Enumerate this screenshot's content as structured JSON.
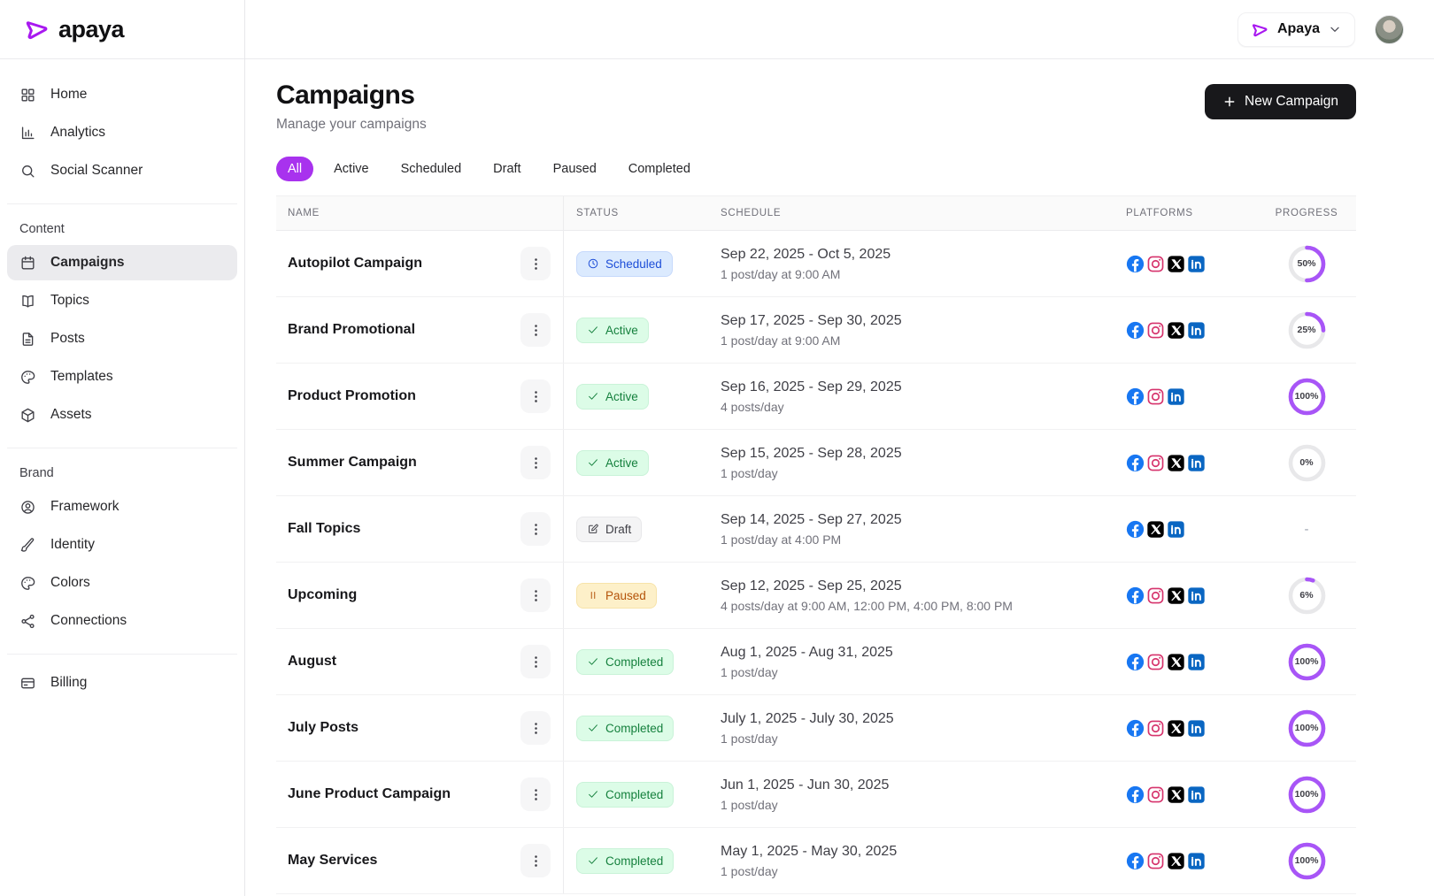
{
  "colors": {
    "accent_purple": "#a832ee",
    "ring_purple": "#a855f7",
    "ring_track": "#e8e8ea",
    "facebook_blue": "#1877f2",
    "instagram_pink": "#d6336c",
    "x_black": "#000000",
    "linkedin_blue": "#0a66c2",
    "button_black": "#18181b",
    "scheduled_blue": "#1d4ed8",
    "active_green": "#15803d",
    "paused_amber": "#b45309"
  },
  "brand": {
    "logo_text": "apaya",
    "logo_icon": "arrow-play"
  },
  "topbar": {
    "workspace_name": "Apaya",
    "chevron_icon": "chevron-down",
    "avatar": "user-photo"
  },
  "sidebar": {
    "sections": [
      {
        "label": null,
        "items": [
          {
            "icon": "grid",
            "label": "Home",
            "active": false
          },
          {
            "icon": "chart",
            "label": "Analytics",
            "active": false
          },
          {
            "icon": "search",
            "label": "Social Scanner",
            "active": false
          }
        ]
      },
      {
        "label": "Content",
        "items": [
          {
            "icon": "calendar",
            "label": "Campaigns",
            "active": true
          },
          {
            "icon": "book",
            "label": "Topics",
            "active": false
          },
          {
            "icon": "file",
            "label": "Posts",
            "active": false
          },
          {
            "icon": "palette",
            "label": "Templates",
            "active": false
          },
          {
            "icon": "cube",
            "label": "Assets",
            "active": false
          }
        ]
      },
      {
        "label": "Brand",
        "items": [
          {
            "icon": "user-circle",
            "label": "Framework",
            "active": false
          },
          {
            "icon": "brush",
            "label": "Identity",
            "active": false
          },
          {
            "icon": "palette",
            "label": "Colors",
            "active": false
          },
          {
            "icon": "share",
            "label": "Connections",
            "active": false
          }
        ]
      },
      {
        "label": null,
        "items": [
          {
            "icon": "card",
            "label": "Billing",
            "active": false
          }
        ]
      }
    ]
  },
  "page": {
    "title": "Campaigns",
    "subtitle": "Manage your campaigns",
    "new_campaign_label": "New Campaign"
  },
  "filters": {
    "selected": "All",
    "options": [
      "All",
      "Active",
      "Scheduled",
      "Draft",
      "Paused",
      "Completed"
    ]
  },
  "table": {
    "columns": [
      "NAME",
      "STATUS",
      "SCHEDULE",
      "PLATFORMS",
      "PROGRESS"
    ],
    "rows": [
      {
        "name": "Autopilot Campaign",
        "status": "Scheduled",
        "date_range": "Sep 22, 2025 - Oct 5, 2025",
        "frequency": "1 post/day at 9:00 AM",
        "platforms": [
          "facebook",
          "instagram",
          "x",
          "linkedin"
        ],
        "progress": 50
      },
      {
        "name": "Brand Promotional",
        "status": "Active",
        "date_range": "Sep 17, 2025 - Sep 30, 2025",
        "frequency": "1 post/day at 9:00 AM",
        "platforms": [
          "facebook",
          "instagram",
          "x",
          "linkedin"
        ],
        "progress": 25
      },
      {
        "name": "Product Promotion",
        "status": "Active",
        "date_range": "Sep 16, 2025 - Sep 29, 2025",
        "frequency": "4 posts/day",
        "platforms": [
          "facebook",
          "instagram",
          "linkedin"
        ],
        "progress": 100
      },
      {
        "name": "Summer Campaign",
        "status": "Active",
        "date_range": "Sep 15, 2025 - Sep 28, 2025",
        "frequency": "1 post/day",
        "platforms": [
          "facebook",
          "instagram",
          "x",
          "linkedin"
        ],
        "progress": 0
      },
      {
        "name": "Fall Topics",
        "status": "Draft",
        "date_range": "Sep 14, 2025 - Sep 27, 2025",
        "frequency": "1 post/day at 4:00 PM",
        "platforms": [
          "facebook",
          "x",
          "linkedin"
        ],
        "progress": null
      },
      {
        "name": "Upcoming",
        "status": "Paused",
        "date_range": "Sep 12, 2025 - Sep 25, 2025",
        "frequency": "4 posts/day at 9:00 AM, 12:00 PM, 4:00 PM, 8:00 PM",
        "platforms": [
          "facebook",
          "instagram",
          "x",
          "linkedin"
        ],
        "progress": 6
      },
      {
        "name": "August",
        "status": "Completed",
        "date_range": "Aug 1, 2025 - Aug 31, 2025",
        "frequency": "1 post/day",
        "platforms": [
          "facebook",
          "instagram",
          "x",
          "linkedin"
        ],
        "progress": 100
      },
      {
        "name": "July Posts",
        "status": "Completed",
        "date_range": "July 1, 2025 - July 30, 2025",
        "frequency": "1 post/day",
        "platforms": [
          "facebook",
          "instagram",
          "x",
          "linkedin"
        ],
        "progress": 100
      },
      {
        "name": "June Product Campaign",
        "status": "Completed",
        "date_range": "Jun 1, 2025 - Jun 30, 2025",
        "frequency": "1 post/day",
        "platforms": [
          "facebook",
          "instagram",
          "x",
          "linkedin"
        ],
        "progress": 100
      },
      {
        "name": "May Services",
        "status": "Completed",
        "date_range": "May 1, 2025 - May 30, 2025",
        "frequency": "1 post/day",
        "platforms": [
          "facebook",
          "instagram",
          "x",
          "linkedin"
        ],
        "progress": 100
      }
    ],
    "status_icons": {
      "Scheduled": "clock",
      "Active": "check",
      "Draft": "edit",
      "Paused": "pause",
      "Completed": "check"
    },
    "empty_progress_text": "-"
  }
}
